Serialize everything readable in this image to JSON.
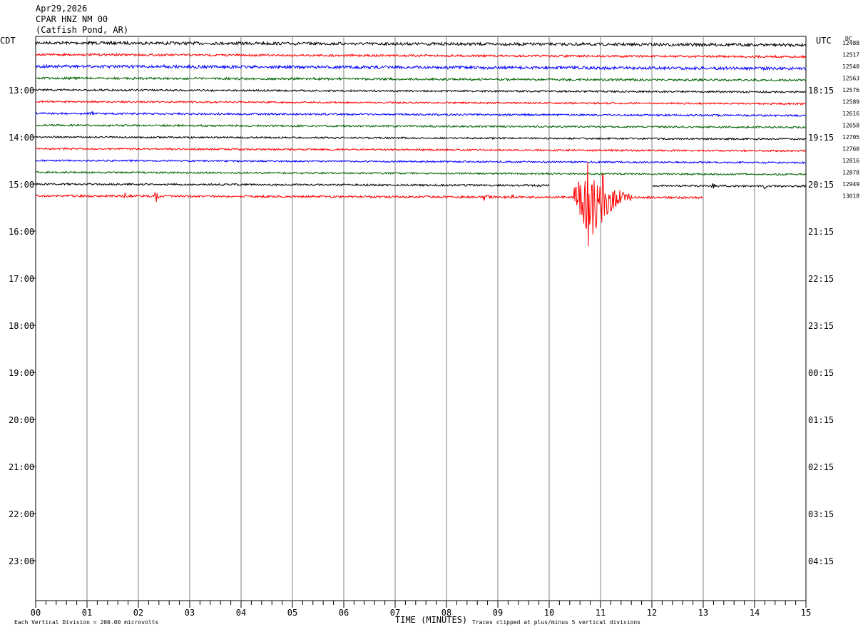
{
  "header": {
    "date": "Apr29,2026",
    "station": "CPAR HNZ NM 00",
    "location": "(Catfish Pond, AR)"
  },
  "left_axis_title": "CDT",
  "right_axis_title": "UTC",
  "dc_title": "DC",
  "footer": {
    "note_left": "Each Vertical Division =  200.00 microvolts",
    "axis_title": "TIME (MINUTES)",
    "note_right": "Traces clipped at plus/minus 5 vertical divisions"
  },
  "colors": {
    "trace_cycle": [
      "#000000",
      "#ff0000",
      "#0000ff",
      "#006400"
    ],
    "grid": "#808080"
  },
  "chart_data": {
    "type": "line",
    "xlabel": "TIME (MINUTES)",
    "x_range": [
      0,
      15
    ],
    "x_ticks": [
      "00",
      "01",
      "02",
      "03",
      "04",
      "05",
      "06",
      "07",
      "08",
      "09",
      "10",
      "11",
      "12",
      "13",
      "14",
      "15"
    ],
    "left_hour_labels": [
      "13:00",
      "14:00",
      "15:00",
      "16:00",
      "17:00",
      "18:00",
      "19:00",
      "20:00",
      "21:00",
      "22:00",
      "23:00"
    ],
    "right_hour_labels": [
      "18:15",
      "19:15",
      "20:15",
      "21:15",
      "22:15",
      "23:15",
      "00:15",
      "01:15",
      "02:15",
      "03:15",
      "04:15"
    ],
    "rows_per_hour": 4,
    "total_rows": 48,
    "series": [
      {
        "dc": "12488",
        "color": "#000000",
        "start": 0,
        "end": 15,
        "amp": 2.0,
        "events": [
          {
            "t": 12.4,
            "a": 4
          },
          {
            "t": 12.9,
            "a": 3
          }
        ]
      },
      {
        "dc": "12517",
        "color": "#ff0000",
        "start": 0,
        "end": 15,
        "amp": 1.5,
        "events": []
      },
      {
        "dc": "12540",
        "color": "#0000ff",
        "start": 0,
        "end": 15,
        "amp": 2.0,
        "events": [
          {
            "t": 2.5,
            "a": 3
          },
          {
            "t": 4.0,
            "a": 3
          },
          {
            "t": 6.6,
            "a": 3
          },
          {
            "t": 8.8,
            "a": 3
          }
        ]
      },
      {
        "dc": "12563",
        "color": "#006400",
        "start": 0,
        "end": 15,
        "amp": 1.5,
        "events": []
      },
      {
        "dc": "12576",
        "color": "#000000",
        "start": 0,
        "end": 15,
        "amp": 1.3,
        "events": [
          {
            "t": 6.95,
            "a": 3
          }
        ]
      },
      {
        "dc": "12589",
        "color": "#ff0000",
        "start": 0,
        "end": 15,
        "amp": 1.2,
        "events": []
      },
      {
        "dc": "12616",
        "color": "#0000ff",
        "start": 0,
        "end": 15,
        "amp": 1.3,
        "events": [
          {
            "t": 1.1,
            "a": 3
          }
        ]
      },
      {
        "dc": "12658",
        "color": "#006400",
        "start": 0,
        "end": 15,
        "amp": 1.3,
        "events": []
      },
      {
        "dc": "12705",
        "color": "#000000",
        "start": 0,
        "end": 15,
        "amp": 1.2,
        "events": []
      },
      {
        "dc": "12760",
        "color": "#ff0000",
        "start": 0,
        "end": 15,
        "amp": 1.2,
        "events": [
          {
            "t": 9.2,
            "a": 3
          }
        ]
      },
      {
        "dc": "12816",
        "color": "#0000ff",
        "start": 0,
        "end": 15,
        "amp": 1.2,
        "events": []
      },
      {
        "dc": "12878",
        "color": "#006400",
        "start": 0,
        "end": 15,
        "amp": 1.2,
        "events": []
      },
      {
        "dc": "12949",
        "color": "#000000",
        "start": 0,
        "end": 15,
        "gap": [
          10.0,
          12.0
        ],
        "amp": 1.3,
        "events": [
          {
            "t": 9.8,
            "a": 5
          },
          {
            "t": 13.2,
            "a": 5
          },
          {
            "t": 14.2,
            "a": 4
          }
        ]
      },
      {
        "dc": "13018",
        "color": "#ff0000",
        "start": 0,
        "end": 13.0,
        "amp": 1.5,
        "events": [
          {
            "t": 1.75,
            "a": 8
          },
          {
            "t": 2.35,
            "a": 10
          },
          {
            "t": 8.75,
            "a": 12
          },
          {
            "t": 9.3,
            "a": 6
          },
          {
            "t": 10.8,
            "a": 80,
            "dur": 0.8
          }
        ]
      }
    ]
  }
}
